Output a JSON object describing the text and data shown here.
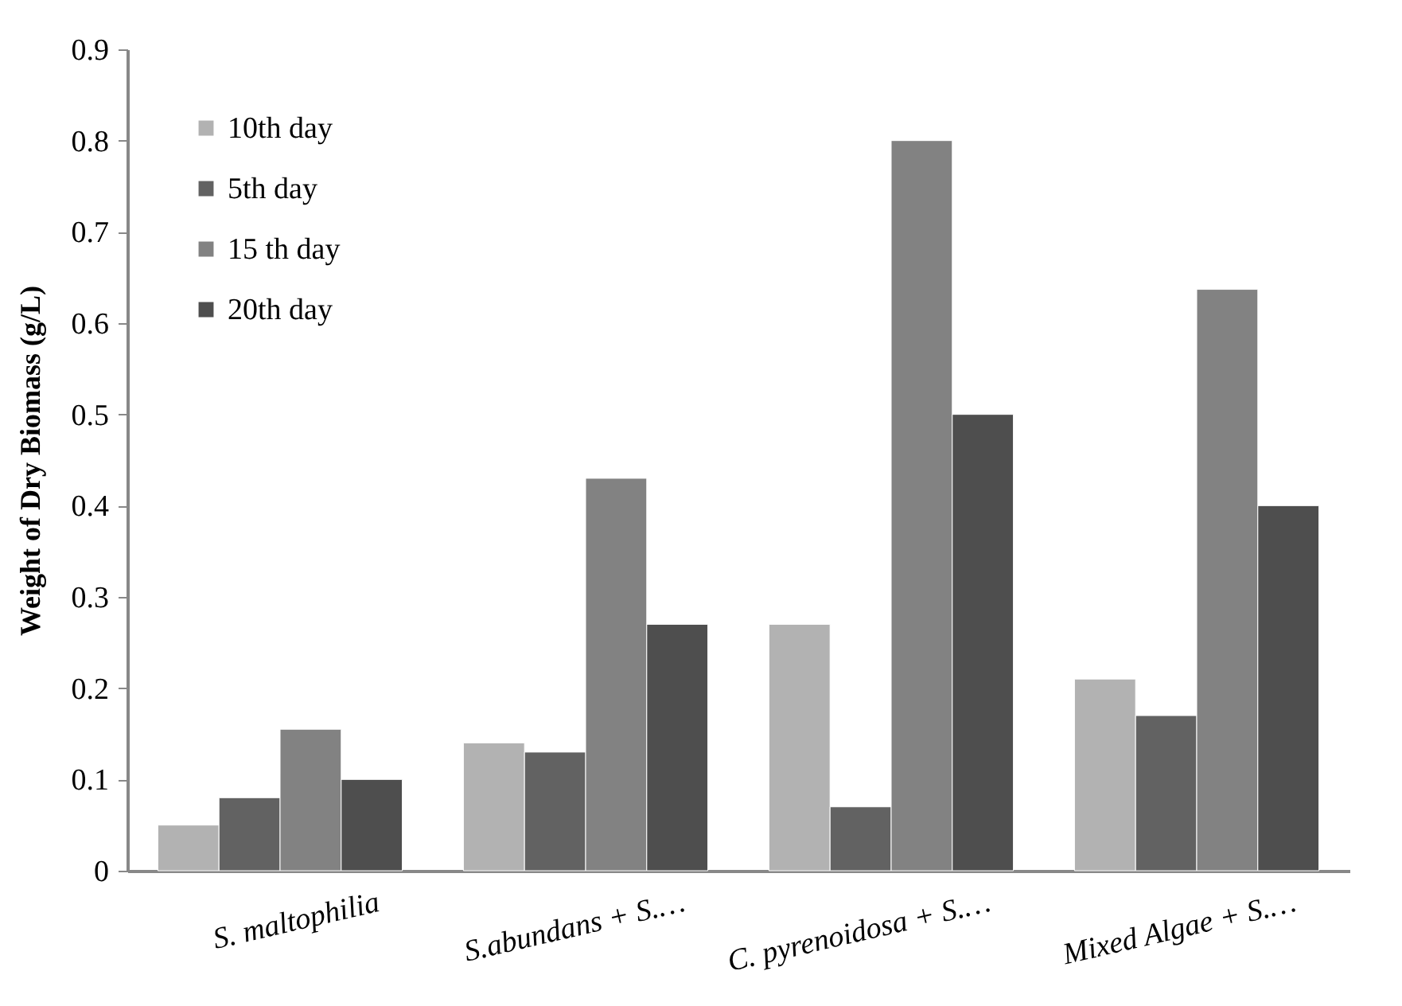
{
  "chart_data": {
    "type": "bar",
    "ylabel": "Weight of Dry Biomass (g/L)",
    "categories": [
      "S. maltophilia",
      "S.abundans + S.…",
      "C. pyrenoidosa + S.…",
      "Mixed Algae + S.…"
    ],
    "series": [
      {
        "name": "10th day",
        "color": "#b2b2b2",
        "values": [
          0.05,
          0.14,
          0.27,
          0.21
        ]
      },
      {
        "name": "5th day",
        "color": "#626262",
        "values": [
          0.08,
          0.13,
          0.07,
          0.17
        ]
      },
      {
        "name": "15 th day",
        "color": "#828282",
        "values": [
          0.155,
          0.43,
          0.8,
          0.637
        ]
      },
      {
        "name": "20th day",
        "color": "#4e4e4e",
        "values": [
          0.1,
          0.27,
          0.5,
          0.4
        ]
      }
    ],
    "ylim": [
      0,
      0.9
    ],
    "yticks": [
      0,
      0.1,
      0.2,
      0.3,
      0.4,
      0.5,
      0.6,
      0.7,
      0.8,
      0.9
    ],
    "grid": false,
    "legend": "top left"
  }
}
